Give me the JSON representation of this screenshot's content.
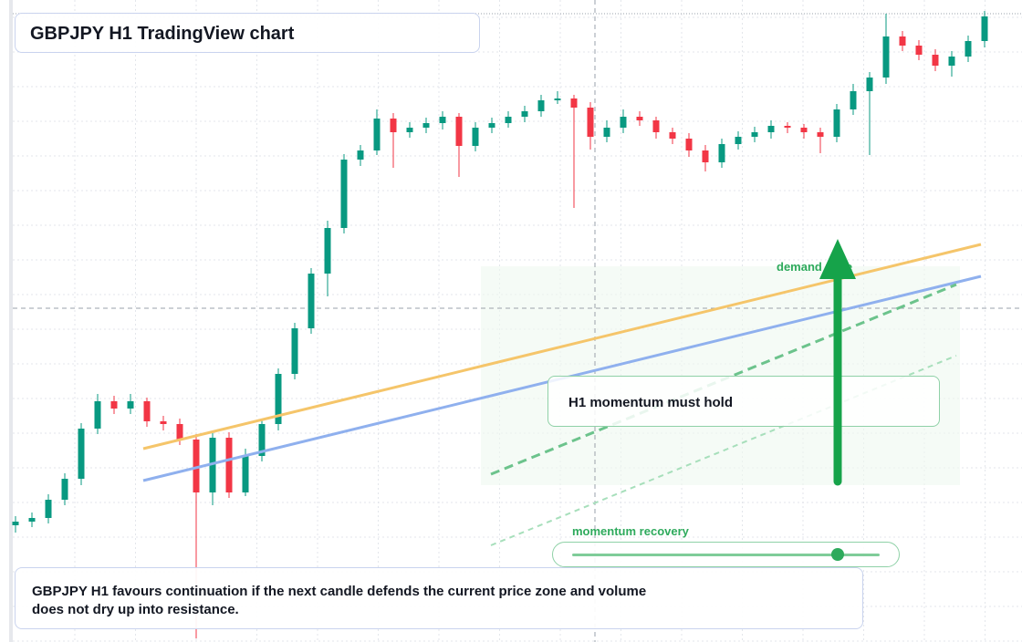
{
  "title": "GBPJPY H1 TradingView chart",
  "chart_data": {
    "type": "candlestick",
    "open": [
      128,
      132,
      136,
      156,
      179,
      234,
      264,
      256,
      264,
      242,
      239,
      222,
      164,
      224,
      164,
      204,
      239,
      294,
      344,
      404,
      454,
      529,
      539,
      574,
      559,
      564,
      569,
      576,
      544,
      564,
      569,
      576,
      582,
      594,
      596,
      586,
      554,
      564,
      576,
      572,
      559,
      552,
      539,
      526,
      546,
      554,
      559,
      566,
      564,
      559,
      554,
      584,
      604,
      619,
      664,
      654,
      644,
      632,
      642,
      659
    ],
    "high": [
      138,
      142,
      162,
      185,
      240,
      272,
      270,
      272,
      268,
      248,
      245,
      228,
      232,
      230,
      212,
      245,
      300,
      350,
      410,
      462,
      535,
      545,
      584,
      580,
      570,
      575,
      582,
      580,
      570,
      575,
      582,
      588,
      600,
      604,
      600,
      592,
      572,
      584,
      582,
      576,
      564,
      558,
      545,
      552,
      560,
      565,
      572,
      570,
      568,
      564,
      590,
      612,
      625,
      689,
      670,
      660,
      650,
      648,
      665,
      692
    ],
    "low": [
      120,
      126,
      130,
      150,
      172,
      228,
      250,
      250,
      236,
      232,
      216,
      4,
      150,
      158,
      160,
      198,
      232,
      288,
      338,
      379,
      448,
      522,
      534,
      520,
      553,
      558,
      562,
      510,
      538,
      558,
      564,
      570,
      576,
      590,
      476,
      540,
      548,
      558,
      566,
      552,
      546,
      532,
      516,
      520,
      540,
      548,
      552,
      558,
      552,
      536,
      548,
      578,
      534,
      612,
      648,
      638,
      626,
      620,
      636,
      652
    ],
    "close": [
      132,
      136,
      156,
      179,
      234,
      264,
      256,
      264,
      242,
      239,
      222,
      164,
      224,
      164,
      204,
      239,
      294,
      344,
      404,
      454,
      529,
      539,
      574,
      559,
      564,
      569,
      576,
      544,
      564,
      569,
      576,
      582,
      594,
      596,
      586,
      554,
      564,
      576,
      572,
      559,
      552,
      539,
      526,
      546,
      554,
      559,
      566,
      564,
      559,
      554,
      584,
      604,
      619,
      664,
      654,
      644,
      632,
      642,
      659,
      686
    ],
    "ylim": [
      0,
      704
    ],
    "up_color": "#089981",
    "down_color": "#f23645",
    "grid": true
  },
  "annotations": {
    "zone_label": "demand zone",
    "callout": "H1 momentum must hold",
    "slider_label": "momentum recovery"
  },
  "note": "GBPJPY H1 favours continuation if the next candle defends the current price zone and volume does not dry up into resistance."
}
